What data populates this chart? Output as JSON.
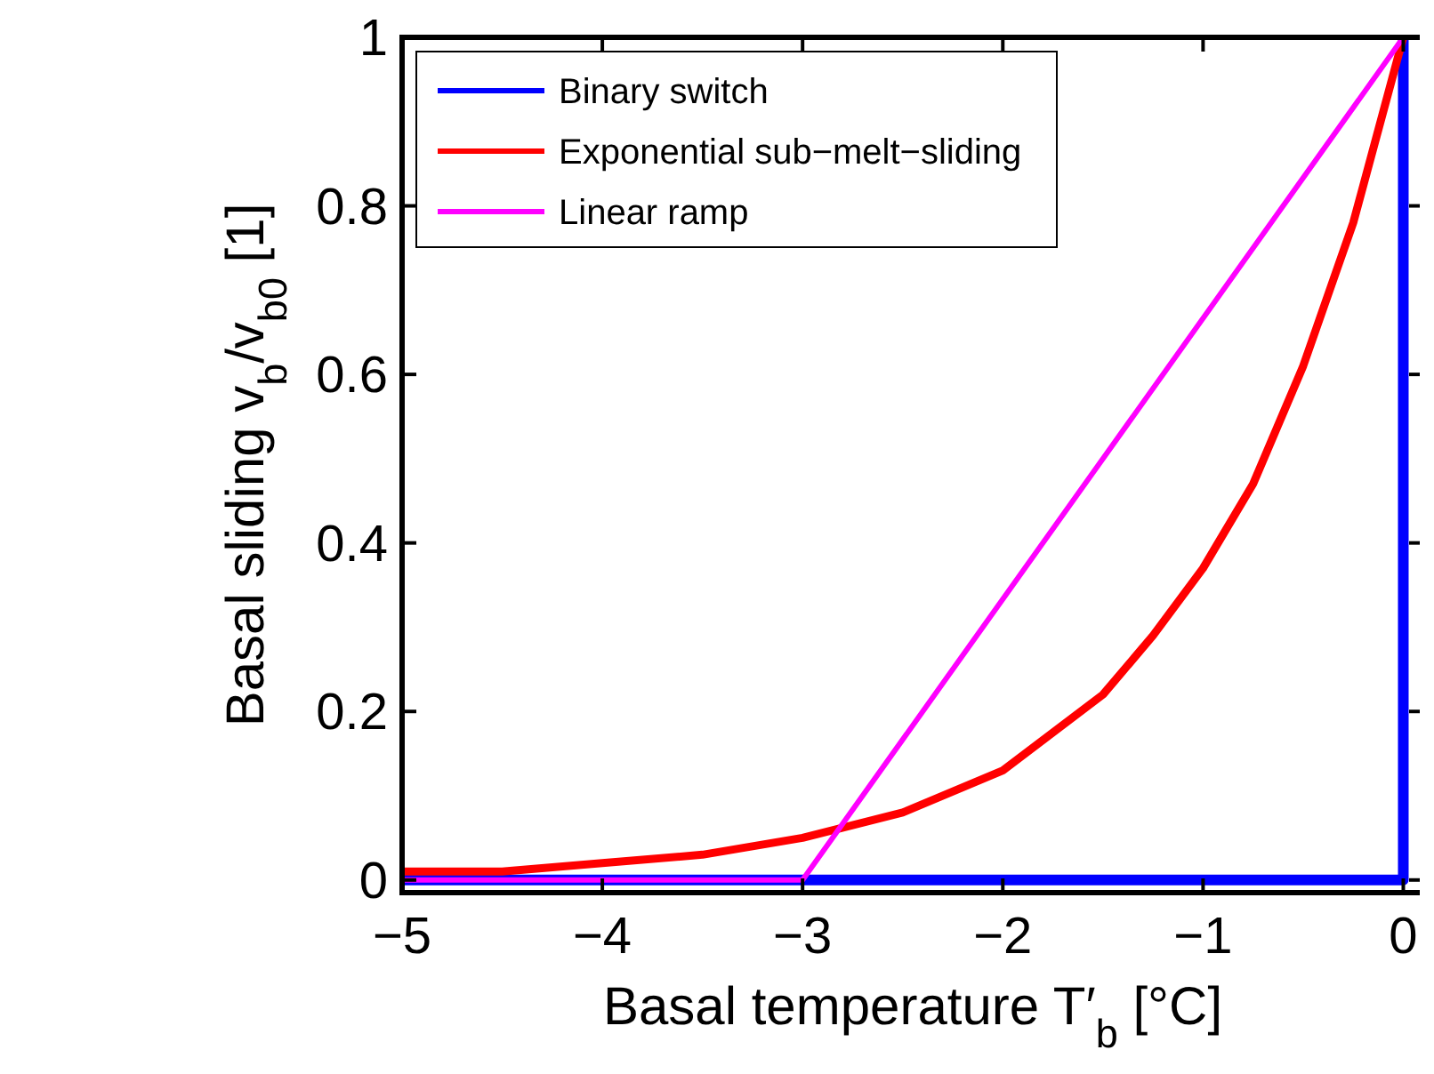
{
  "chart_data": {
    "type": "line",
    "xlabel": "Basal temperature T′$_{b}$ [°C]",
    "ylabel": "Basal sliding v$_{b}$/v$_{b0}$  [1]",
    "xlim": [
      -5,
      0.1
    ],
    "xticks": [
      {
        "value": -5,
        "label": "−5"
      },
      {
        "value": -4,
        "label": "−4"
      },
      {
        "value": -3,
        "label": "−3"
      },
      {
        "value": -2,
        "label": "−2"
      },
      {
        "value": -1,
        "label": "−1"
      },
      0
    ],
    "ylim": [
      -0.015,
      1
    ],
    "yticks": [
      0,
      0.2,
      0.4,
      0.6,
      0.8,
      1
    ],
    "grid": false,
    "legend": "top left",
    "line_style": "solid",
    "marker": "none",
    "series": [
      {
        "name": "Binary switch",
        "color": "#0000ff",
        "x": [
          -5,
          0,
          0
        ],
        "values": [
          0,
          0,
          1
        ]
      },
      {
        "name": "Exponential sub−melt−sliding",
        "color": "#ff0000",
        "x": [
          -5,
          -4.5,
          -4,
          -3.5,
          -3,
          -2.5,
          -2,
          -1.5,
          -1.25,
          -1,
          -0.75,
          -0.5,
          -0.25,
          0
        ],
        "values": [
          0.01,
          0.01,
          0.02,
          0.03,
          0.05,
          0.08,
          0.13,
          0.22,
          0.29,
          0.37,
          0.47,
          0.61,
          0.78,
          1
        ]
      },
      {
        "name": "Linear ramp",
        "color": "#ff00ff",
        "x": [
          -5,
          -3,
          0
        ],
        "values": [
          0,
          0,
          1
        ]
      }
    ]
  }
}
